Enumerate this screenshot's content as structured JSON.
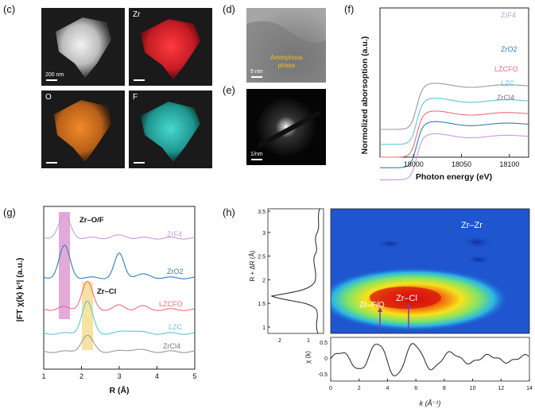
{
  "panels": {
    "c": {
      "label": "(c)",
      "images": [
        {
          "label": "",
          "scalebar": "200 nm",
          "base": "#1c1c1c",
          "glow": "#e8e8e8"
        },
        {
          "label": "Zr",
          "scalebar": "",
          "base": "#1a1a1a",
          "glow": "#d8232a"
        },
        {
          "label": "O",
          "scalebar": "",
          "base": "#1a1a1a",
          "glow": "#e07a1c"
        },
        {
          "label": "F",
          "scalebar": "",
          "base": "#1a1a1a",
          "glow": "#2fb7b0"
        }
      ]
    },
    "d": {
      "label": "(d)",
      "scalebar": "5 nm",
      "annotation_line1": "Amorphous",
      "annotation_line2": "phase"
    },
    "e": {
      "label": "(e)",
      "scalebar": "1/nm"
    },
    "f": {
      "label": "(f)",
      "ylabel": "Normolized aborsoption (a.u.)",
      "xlabel": "Photon energy (eV)",
      "xticks": [
        18000,
        18050,
        18100
      ],
      "series": [
        {
          "name": "ZrF4",
          "color": "#c99bdb"
        },
        {
          "name": "ZrO2",
          "color": "#2f7fc2"
        },
        {
          "name": "LZCFO",
          "color": "#f06d78"
        },
        {
          "name": "LZC",
          "color": "#5cc6d8"
        },
        {
          "name": "ZrCl4",
          "color": "#9a9a9a"
        }
      ]
    },
    "g": {
      "label": "(g)",
      "ylabel": "|FT χ(k) k³| (a.u.)",
      "xlabel": "R (Å)",
      "xticks": [
        1,
        2,
        3,
        4,
        5
      ],
      "annotation_zrof": "Zr–O/F",
      "annotation_zrcl": "Zr–Cl",
      "series": [
        {
          "name": "ZrF4",
          "color": "#c99bdb"
        },
        {
          "name": "ZrO2",
          "color": "#2f7fc2"
        },
        {
          "name": "LZCFO",
          "color": "#f06d78"
        },
        {
          "name": "LZC",
          "color": "#5cc6d8"
        },
        {
          "name": "ZrCl4",
          "color": "#9a9a9a"
        }
      ]
    },
    "h": {
      "label": "(h)",
      "ylabel_left": "R + ΔR (Å)",
      "ylabel_bottom": "χ (k)",
      "xlabel": "k (Å⁻¹)",
      "r_ticks": [
        "3.5",
        "3",
        "2.5",
        "2",
        "1.5",
        "1"
      ],
      "side_xticks": [
        "2",
        "1"
      ],
      "chi_ticks": [
        "0.5",
        "0",
        "-0.5"
      ],
      "k_ticks": [
        "0",
        "2",
        "4",
        "6",
        "8",
        "10",
        "12",
        "14"
      ],
      "label_zrzr": "Zr–Zr",
      "label_zrcl": "Zr–Cl",
      "label_zrfo": "Zr–F/O"
    }
  }
}
